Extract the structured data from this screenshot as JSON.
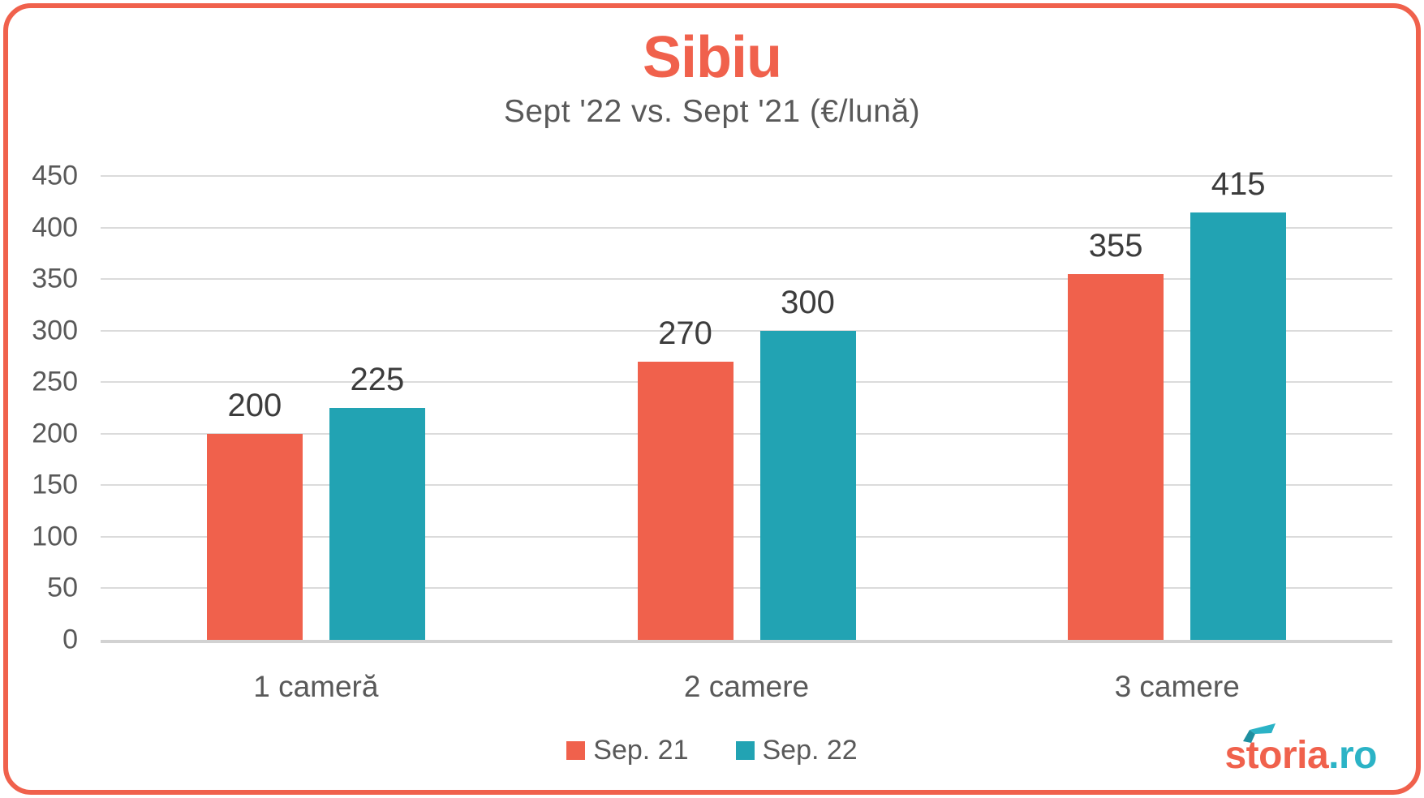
{
  "theme": {
    "accent_orange": "#F0614C",
    "accent_teal": "#22A3B3",
    "logo_teal": "#2BB3C6",
    "text_gray": "#595959",
    "value_label_color": "#3C3C3C",
    "gridline_color": "#DBDBDB"
  },
  "chart_data": {
    "type": "bar",
    "title": "Sibiu",
    "subtitle": "Sept '22 vs. Sept '21 (€/lună)",
    "categories": [
      "1 cameră",
      "2 camere",
      "3 camere"
    ],
    "series": [
      {
        "name": "Sep. 21",
        "color": "#F0614C",
        "values": [
          200,
          270,
          355
        ]
      },
      {
        "name": "Sep. 22",
        "color": "#22A3B3",
        "values": [
          225,
          300,
          415
        ]
      }
    ],
    "xlabel": "",
    "ylabel": "",
    "ylim": [
      0,
      450
    ],
    "ytick_step": 50,
    "grid": true,
    "legend_position": "bottom"
  },
  "footer": {
    "logo_text": "storia",
    "logo_suffix": ".ro"
  }
}
